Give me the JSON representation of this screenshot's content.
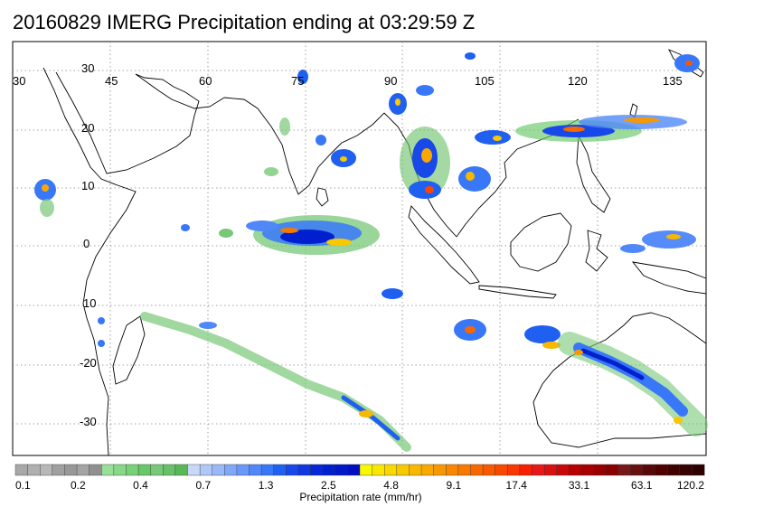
{
  "title": "20160829 IMERG Precipitation ending at 03:29:59 Z",
  "lon_labels": [
    "30",
    "45",
    "60",
    "75",
    "90",
    "105",
    "120",
    "135"
  ],
  "lat_labels": [
    "30",
    "20",
    "10",
    "0",
    "10",
    "-20",
    "-30"
  ],
  "colorbar": {
    "label": "Precipitation rate (mm/hr)",
    "tick_labels": [
      "0.1",
      "0.2",
      "0.4",
      "0.7",
      "1.3",
      "2.5",
      "4.8",
      "9.1",
      "17.4",
      "33.1",
      "63.1",
      "120.2"
    ],
    "colors": [
      "#a8a8a8",
      "#b0b0b0",
      "#b8b8b8",
      "#a0a0a0",
      "#989898",
      "#a4a4a4",
      "#909090",
      "#98e098",
      "#88d888",
      "#78d078",
      "#68c868",
      "#78c878",
      "#68c068",
      "#58b858",
      "#c8d8f8",
      "#b0c8f8",
      "#98b8f8",
      "#80a8f8",
      "#6898f8",
      "#5088f8",
      "#3878f8",
      "#2060f0",
      "#1848e8",
      "#1038e0",
      "#0828d8",
      "#0020d0",
      "#0018c8",
      "#0010c0",
      "#f8f800",
      "#f8e800",
      "#f8d800",
      "#f8c800",
      "#f8b800",
      "#f8a800",
      "#f89800",
      "#f88800",
      "#f87800",
      "#f86800",
      "#f85800",
      "#f84800",
      "#f83800",
      "#f82000",
      "#e81818",
      "#d81010",
      "#c80808",
      "#b80000",
      "#a80000",
      "#980000",
      "#880000",
      "#781818",
      "#681010",
      "#580808",
      "#500000",
      "#400000",
      "#380000",
      "#300000"
    ]
  }
}
